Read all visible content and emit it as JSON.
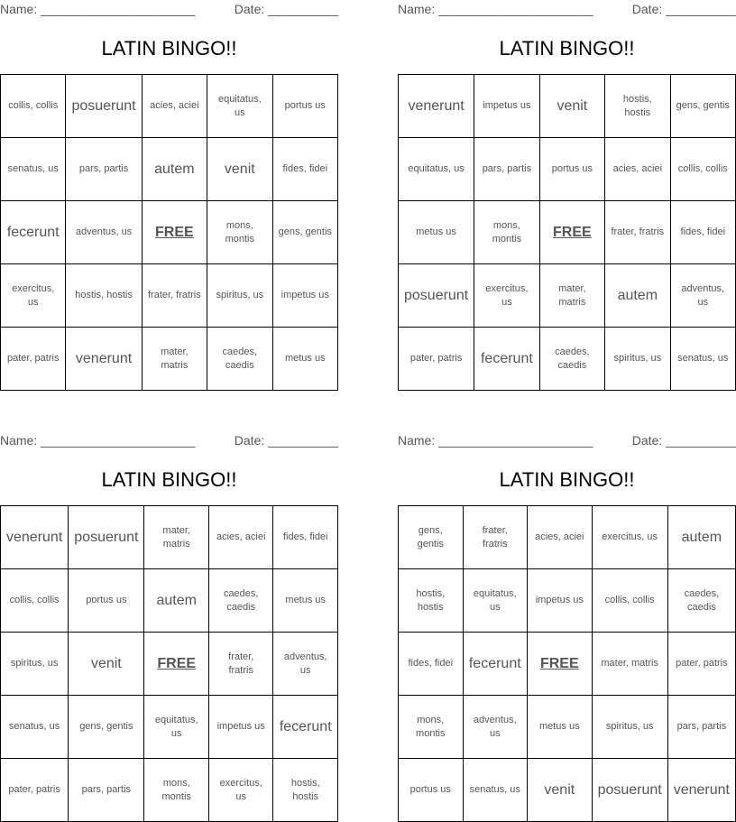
{
  "cards": [
    {
      "name_label": "Name: ______________________",
      "date_label": "Date: __________",
      "title": "LATIN BINGO!!",
      "rows": [
        [
          "collis, collis",
          "posuerunt",
          "acies, aciei",
          "equitatus, us",
          "portus us"
        ],
        [
          "senatus, us",
          "pars, partis",
          "autem",
          "venit",
          "fides, fidei"
        ],
        [
          "fecerunt",
          "adventus, us",
          "FREE",
          "mons, montis",
          "gens, gentis"
        ],
        [
          "exercitus, us",
          "hostis, hostis",
          "frater, fratris",
          "spiritus, us",
          "impetus us"
        ],
        [
          "pater, patris",
          "venerunt",
          "mater, matris",
          "caedes, caedis",
          "metus us"
        ]
      ]
    },
    {
      "name_label": "Name: ______________________",
      "date_label": "Date: __________",
      "title": "LATIN BINGO!!",
      "rows": [
        [
          "venerunt",
          "impetus us",
          "venit",
          "hostis, hostis",
          "gens, gentis"
        ],
        [
          "equitatus, us",
          "pars, partis",
          "portus us",
          "acies, aciei",
          "collis, collis"
        ],
        [
          "metus us",
          "mons, montis",
          "FREE",
          "frater, fratris",
          "fides, fidei"
        ],
        [
          "posuerunt",
          "exercitus, us",
          "mater, matris",
          "autem",
          "adventus, us"
        ],
        [
          "pater, patris",
          "fecerunt",
          "caedes, caedis",
          "spiritus, us",
          "senatus, us"
        ]
      ]
    },
    {
      "name_label": "Name: ______________________",
      "date_label": "Date: __________",
      "title": "LATIN BINGO!!",
      "rows": [
        [
          "venerunt",
          "posuerunt",
          "mater, matris",
          "acies, aciei",
          "fides, fidei"
        ],
        [
          "collis, collis",
          "portus us",
          "autem",
          "caedes, caedis",
          "metus us"
        ],
        [
          "spiritus, us",
          "venit",
          "FREE",
          "frater, fratris",
          "adventus, us"
        ],
        [
          "senatus, us",
          "gens, gentis",
          "equitatus, us",
          "impetus us",
          "fecerunt"
        ],
        [
          "pater, patris",
          "pars, partis",
          "mons, montis",
          "exercitus, us",
          "hostis, hostis"
        ]
      ]
    },
    {
      "name_label": "Name: ______________________",
      "date_label": "Date: __________",
      "title": "LATIN BINGO!!",
      "rows": [
        [
          "gens, gentis",
          "frater, fratris",
          "acies, aciei",
          "exercitus, us",
          "autem"
        ],
        [
          "hostis, hostis",
          "equitatus, us",
          "impetus us",
          "collis, collis",
          "caedes, caedis"
        ],
        [
          "fides, fidei",
          "fecerunt",
          "FREE",
          "mater, matris",
          "pater, patris"
        ],
        [
          "mons, montis",
          "adventus, us",
          "metus us",
          "spiritus, us",
          "pars, partis"
        ],
        [
          "portus us",
          "senatus, us",
          "venit",
          "posuerunt",
          "venerunt"
        ]
      ]
    }
  ]
}
